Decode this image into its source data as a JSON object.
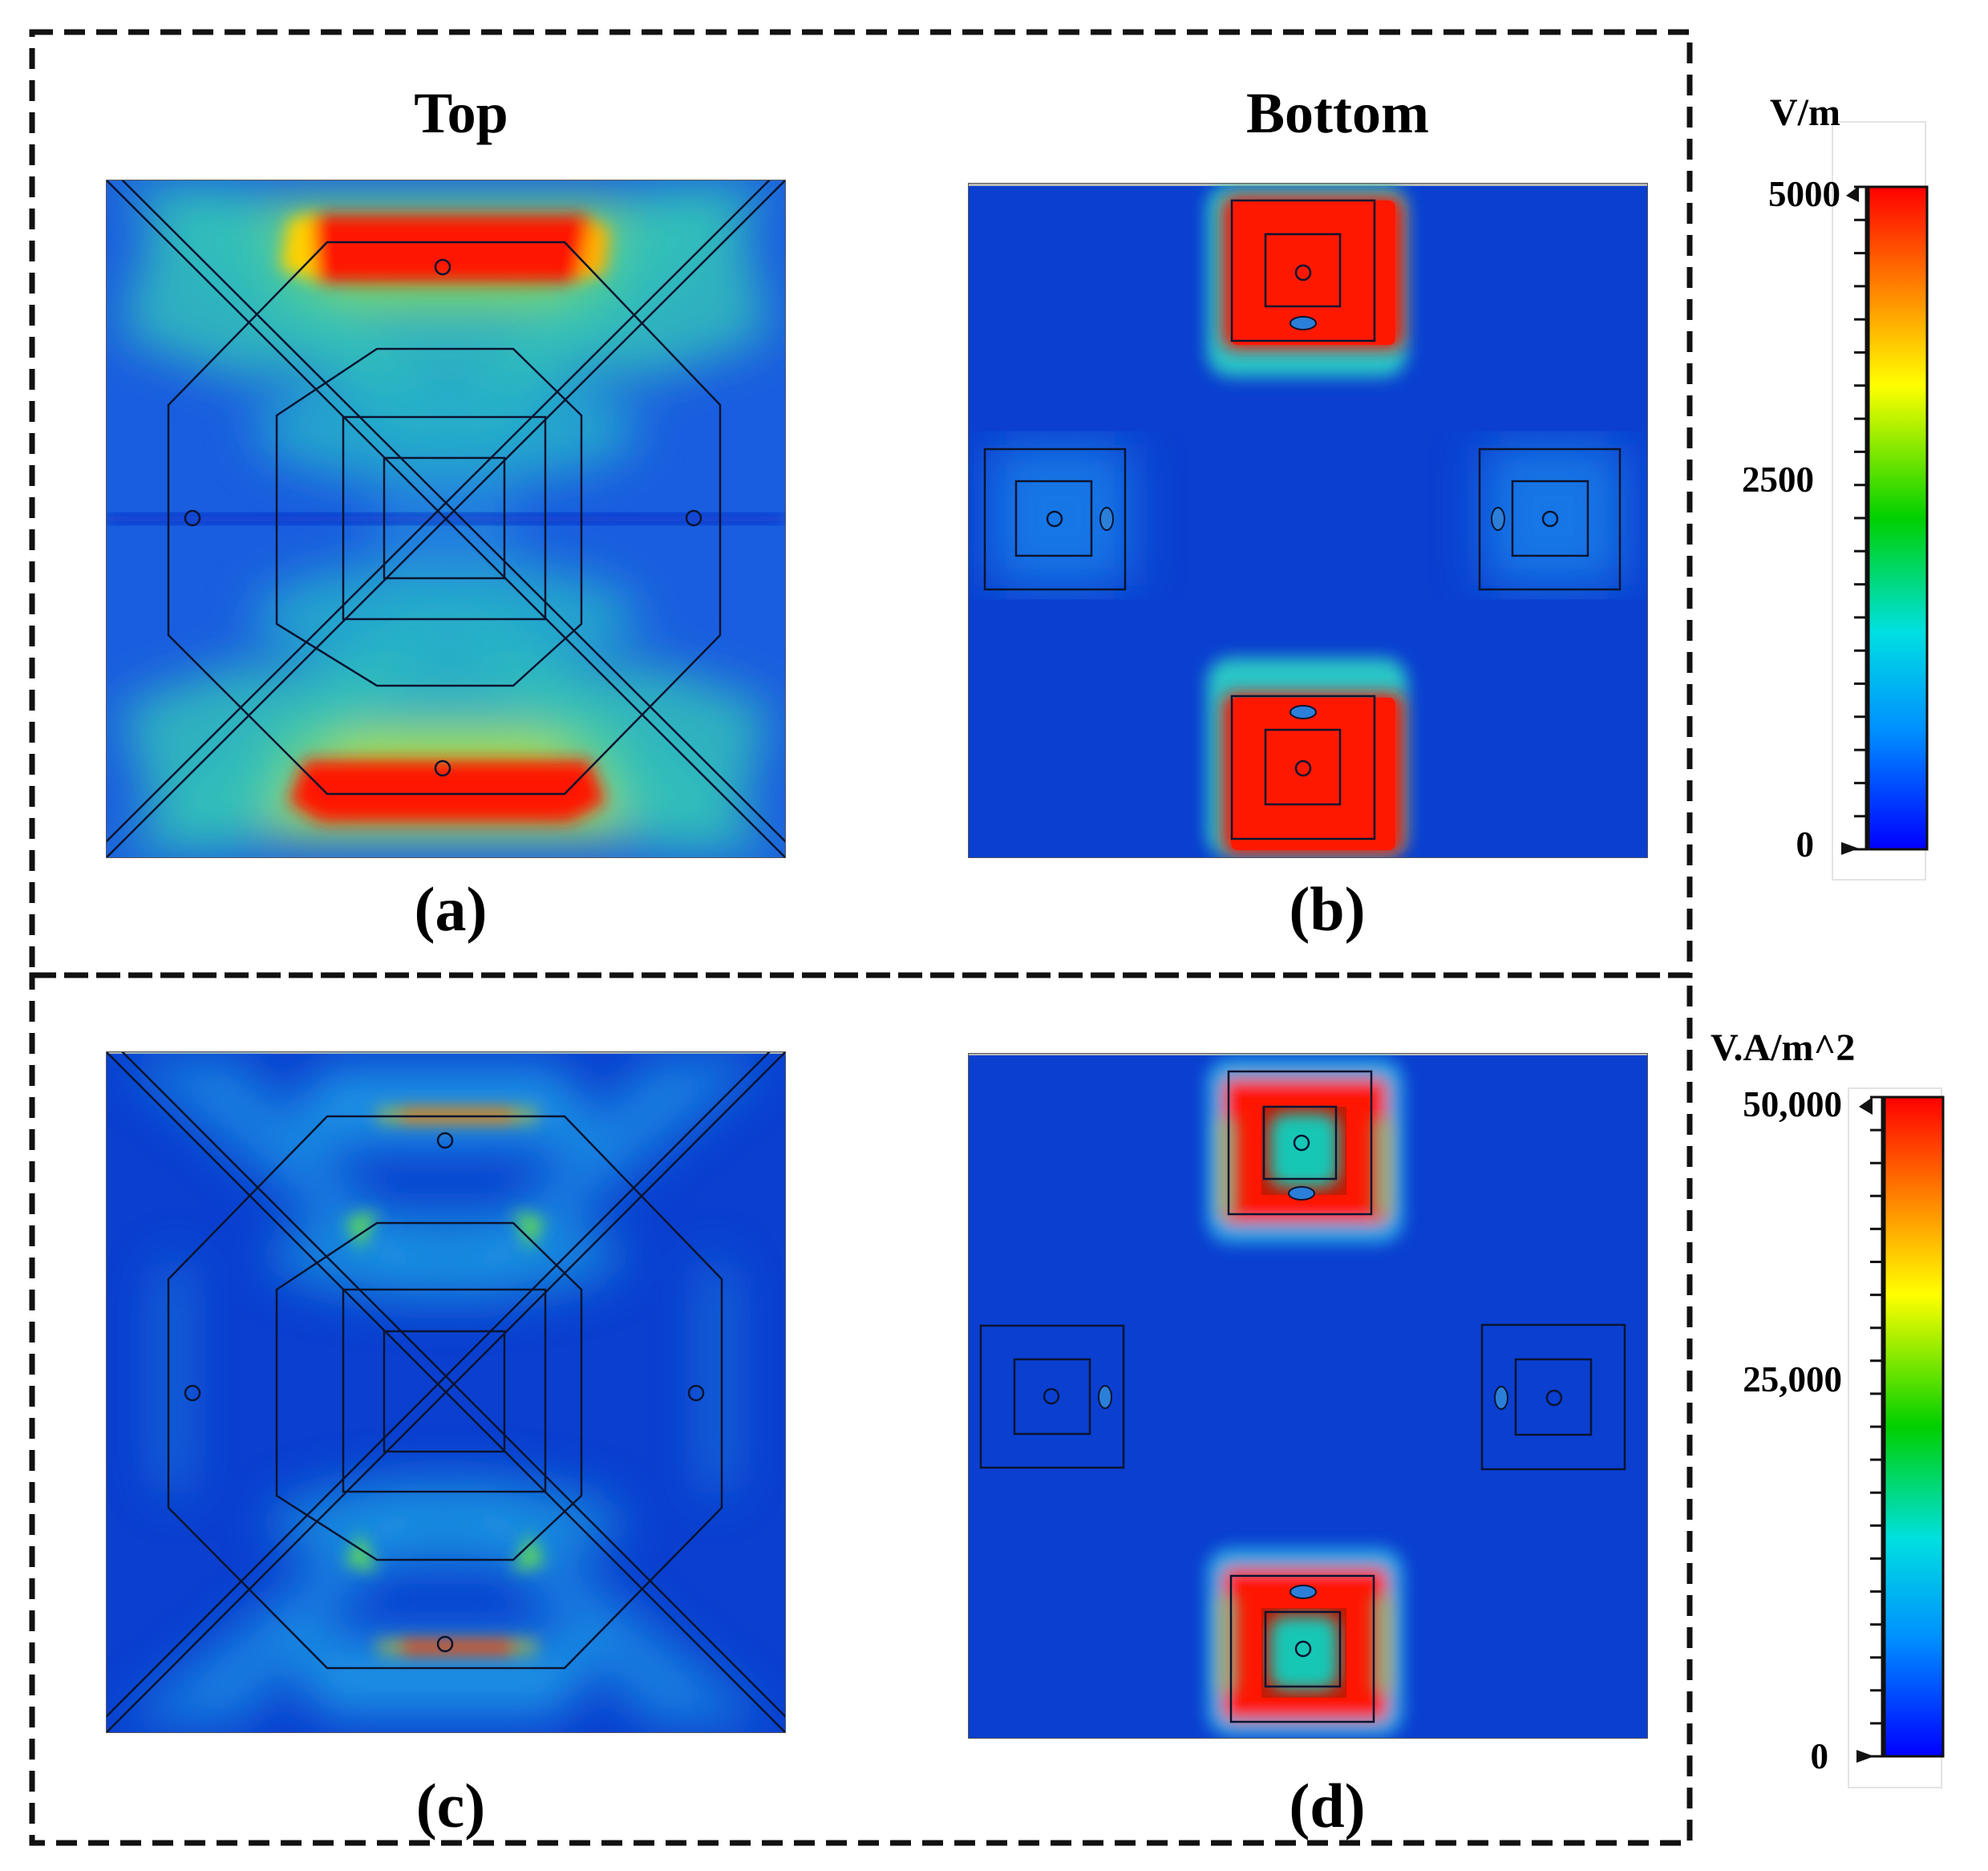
{
  "panels": {
    "a": {
      "heading": "Top",
      "caption": "(a)"
    },
    "b": {
      "heading": "Bottom",
      "caption": "(b)"
    },
    "c": {
      "caption": "(c)"
    },
    "d": {
      "caption": "(d)"
    }
  },
  "legends": {
    "efield": {
      "unit": "V/m",
      "max_label": "5000",
      "mid_label": "2500",
      "min_label": "0",
      "min": 0,
      "max": 5000
    },
    "poynting": {
      "unit": "V.A/m^2",
      "max_label": "50,000",
      "mid_label": "25,000",
      "min_label": "0",
      "min": 0,
      "max": 50000
    }
  },
  "colors": {
    "field_low": "#0a3fd0",
    "field_mid": "#22c94a",
    "field_high": "#ff1a00",
    "scale_stops": [
      "#0000ff",
      "#0090ff",
      "#00e0e0",
      "#00d000",
      "#ffff00",
      "#ff8000",
      "#ff0000"
    ]
  }
}
